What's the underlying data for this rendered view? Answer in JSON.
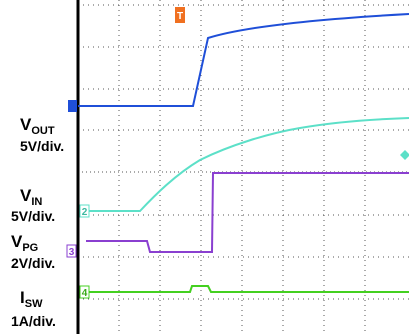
{
  "trigger": "T",
  "channels": [
    {
      "number": "1",
      "name": "V",
      "sub": "OUT",
      "scale": "5V/div."
    },
    {
      "number": "2",
      "name": "V",
      "sub": "IN",
      "scale": "5V/div."
    },
    {
      "number": "3",
      "name": "V",
      "sub": "PG",
      "scale": "2V/div."
    },
    {
      "number": "4",
      "name": "I",
      "sub": "SW",
      "scale": "1A/div."
    }
  ]
}
